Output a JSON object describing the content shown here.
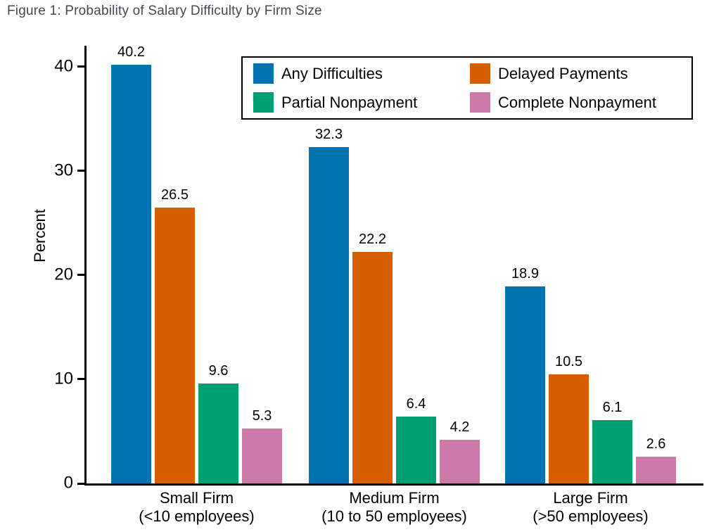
{
  "figure": {
    "title": "Figure 1: Probability of Salary Difficulty by Firm Size"
  },
  "chart_data": {
    "type": "bar",
    "title": "Figure 1: Probability of Salary Difficulty by Firm Size",
    "ylabel": "Percent",
    "xlabel": "",
    "ylim": [
      0,
      42
    ],
    "yticks": [
      0,
      10,
      20,
      30,
      40
    ],
    "grid": false,
    "legend_position": "top-right-inside",
    "bar_value_labels": true,
    "categories": [
      {
        "label": "Small Firm",
        "sublabel": "(<10 employees)"
      },
      {
        "label": "Medium Firm",
        "sublabel": "(10 to 50 employees)"
      },
      {
        "label": "Large Firm",
        "sublabel": "(>50 employees)"
      }
    ],
    "series": [
      {
        "name": "Any Difficulties",
        "color": "#0072B2",
        "values": [
          40.2,
          32.3,
          18.9
        ]
      },
      {
        "name": "Delayed Payments",
        "color": "#D55E00",
        "values": [
          26.5,
          22.2,
          10.5
        ]
      },
      {
        "name": "Partial Nonpayment",
        "color": "#009E73",
        "values": [
          9.6,
          6.4,
          6.1
        ]
      },
      {
        "name": "Complete Nonpayment",
        "color": "#CC79A7",
        "values": [
          5.3,
          4.2,
          2.6
        ]
      }
    ]
  }
}
